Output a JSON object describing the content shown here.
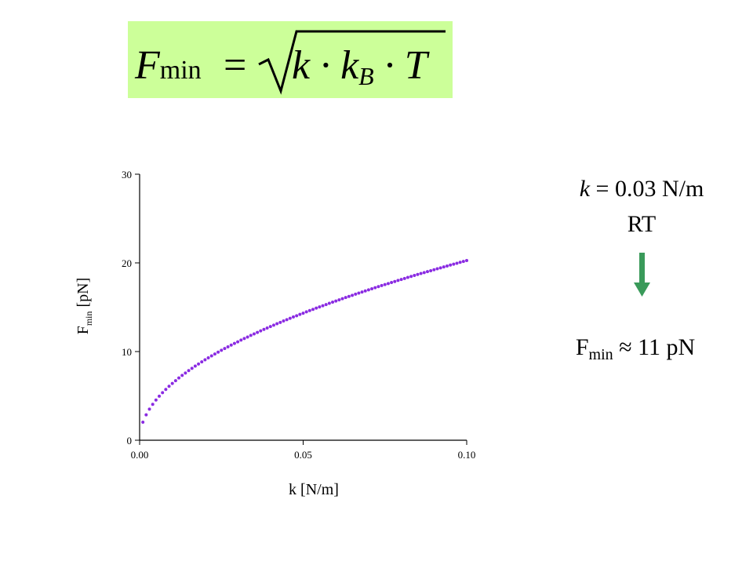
{
  "formula": {
    "lhs": "F",
    "lhs_sub": "min",
    "eq": "=",
    "radicand": "k · k",
    "radicand_sub": "B",
    "radicand_rest": " · T"
  },
  "annotations": {
    "given": {
      "var": "k",
      "rest": " = 0.03 N/m"
    },
    "condition": "RT",
    "result": {
      "var": "F",
      "sub": "min",
      "rest": " ≈ 11 pN"
    }
  },
  "chart_data": {
    "type": "scatter",
    "color": "#8a2be2",
    "xlabel": "k [N/m]",
    "ylabel": {
      "var": "F",
      "sub": "min",
      "rest": " [pN]"
    },
    "xlim": [
      0,
      0.1
    ],
    "ylim": [
      0,
      30
    ],
    "xticks": [
      {
        "value": 0,
        "label": "0.00"
      },
      0.05,
      {
        "value": 0.1,
        "label": "0.10"
      }
    ],
    "yticks": [
      0,
      10,
      20,
      30
    ],
    "x": [
      0.001,
      0.002,
      0.003,
      0.004,
      0.005,
      0.006,
      0.007,
      0.008,
      0.009,
      0.01,
      0.011,
      0.012,
      0.013,
      0.014,
      0.015,
      0.016,
      0.017,
      0.018,
      0.019,
      0.02,
      0.021,
      0.022,
      0.023,
      0.024,
      0.025,
      0.026,
      0.027,
      0.028,
      0.029,
      0.03,
      0.031,
      0.032,
      0.033,
      0.034,
      0.035,
      0.036,
      0.037,
      0.038,
      0.039,
      0.04,
      0.041,
      0.042,
      0.043,
      0.044,
      0.045,
      0.046,
      0.047,
      0.048,
      0.049,
      0.05,
      0.051,
      0.052,
      0.053,
      0.054,
      0.055,
      0.056,
      0.057,
      0.058,
      0.059,
      0.06,
      0.061,
      0.062,
      0.063,
      0.064,
      0.065,
      0.066,
      0.067,
      0.068,
      0.069,
      0.07,
      0.071,
      0.072,
      0.073,
      0.074,
      0.075,
      0.076,
      0.077,
      0.078,
      0.079,
      0.08,
      0.081,
      0.082,
      0.083,
      0.084,
      0.085,
      0.086,
      0.087,
      0.088,
      0.089,
      0.09,
      0.091,
      0.092,
      0.093,
      0.094,
      0.095,
      0.096,
      0.097,
      0.098,
      0.099,
      0.1
    ],
    "values": [
      2.03,
      2.87,
      3.51,
      4.05,
      4.53,
      4.97,
      5.36,
      5.73,
      6.08,
      6.41,
      6.72,
      7.02,
      7.31,
      7.58,
      7.85,
      8.11,
      8.36,
      8.6,
      8.84,
      9.07,
      9.29,
      9.51,
      9.72,
      9.93,
      10.14,
      10.34,
      10.53,
      10.73,
      10.92,
      11.1,
      11.29,
      11.47,
      11.64,
      11.82,
      11.99,
      12.16,
      12.33,
      12.5,
      12.66,
      12.82,
      12.98,
      13.14,
      13.29,
      13.45,
      13.6,
      13.75,
      13.9,
      14.04,
      14.19,
      14.33,
      14.48,
      14.62,
      14.76,
      14.9,
      15.03,
      15.17,
      15.3,
      15.44,
      15.57,
      15.7,
      15.83,
      15.96,
      16.09,
      16.22,
      16.34,
      16.47,
      16.59,
      16.72,
      16.84,
      16.96,
      17.08,
      17.2,
      17.32,
      17.44,
      17.55,
      17.67,
      17.79,
      17.9,
      18.02,
      18.13,
      18.24,
      18.36,
      18.47,
      18.58,
      18.69,
      18.8,
      18.91,
      19.02,
      19.12,
      19.23,
      19.34,
      19.44,
      19.55,
      19.65,
      19.76,
      19.86,
      19.96,
      20.07,
      20.17,
      20.27
    ]
  }
}
